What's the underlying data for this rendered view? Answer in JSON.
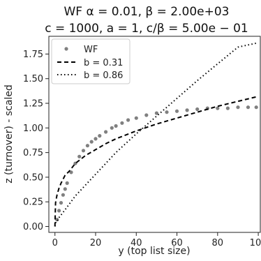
{
  "chart_data": {
    "type": "scatter",
    "title_line1": "WF α = 0.01, β = 2.00e+03",
    "title_line2": "c = 1000, a = 1, c/β = 5.00e − 01",
    "xlabel": "y (top list size)",
    "ylabel": "z (turnover) - scaled",
    "xlim": [
      -3,
      101
    ],
    "ylim": [
      -0.06,
      1.93
    ],
    "xticks": [
      0,
      20,
      40,
      60,
      80,
      100
    ],
    "yticks": [
      0.0,
      0.25,
      0.5,
      0.75,
      1.0,
      1.25,
      1.5,
      1.75
    ],
    "xtick_labels": [
      "0",
      "20",
      "40",
      "60",
      "80",
      "100"
    ],
    "ytick_labels": [
      "0.00",
      "0.25",
      "0.50",
      "0.75",
      "1.00",
      "1.25",
      "1.50",
      "1.75"
    ],
    "grid": false,
    "legend_position": "top-left",
    "legend": {
      "wf": "WF",
      "b1": "b = 0.31",
      "b2": "b = 0.86"
    },
    "series": [
      {
        "name": "WF",
        "style": "points",
        "color": "#808080",
        "x": [
          1,
          2,
          3,
          4,
          5,
          6,
          8,
          10,
          12,
          14,
          16,
          18,
          20,
          22,
          25,
          28,
          30,
          33,
          36,
          40,
          45,
          50,
          55,
          60,
          65,
          70,
          75,
          80,
          85,
          90,
          95,
          99
        ],
        "y": [
          0.07,
          0.16,
          0.24,
          0.32,
          0.38,
          0.44,
          0.55,
          0.64,
          0.71,
          0.77,
          0.82,
          0.86,
          0.89,
          0.92,
          0.96,
          1.0,
          1.02,
          1.05,
          1.08,
          1.1,
          1.13,
          1.15,
          1.16,
          1.17,
          1.18,
          1.19,
          1.2,
          1.2,
          1.2,
          1.21,
          1.21,
          1.21
        ]
      },
      {
        "name": "b = 0.31",
        "style": "dashed",
        "color": "#000000",
        "x": [
          0,
          0.3,
          1,
          2,
          3,
          5,
          7,
          10,
          15,
          20,
          25,
          30,
          40,
          50,
          60,
          70,
          80,
          90,
          100
        ],
        "y": [
          0.0,
          0.24,
          0.32,
          0.39,
          0.44,
          0.52,
          0.56,
          0.64,
          0.72,
          0.78,
          0.84,
          0.89,
          0.97,
          1.04,
          1.1,
          1.16,
          1.22,
          1.27,
          1.32
        ]
      },
      {
        "name": "b = 0.86",
        "style": "dotted",
        "color": "#000000",
        "x": [
          0,
          0.5,
          1,
          2,
          5,
          10,
          20,
          30,
          40,
          50,
          60,
          70,
          80,
          90,
          99
        ],
        "y": [
          0.0,
          0.05,
          0.05,
          0.09,
          0.17,
          0.31,
          0.53,
          0.75,
          0.94,
          1.12,
          1.3,
          1.48,
          1.65,
          1.82,
          1.86
        ]
      }
    ]
  }
}
